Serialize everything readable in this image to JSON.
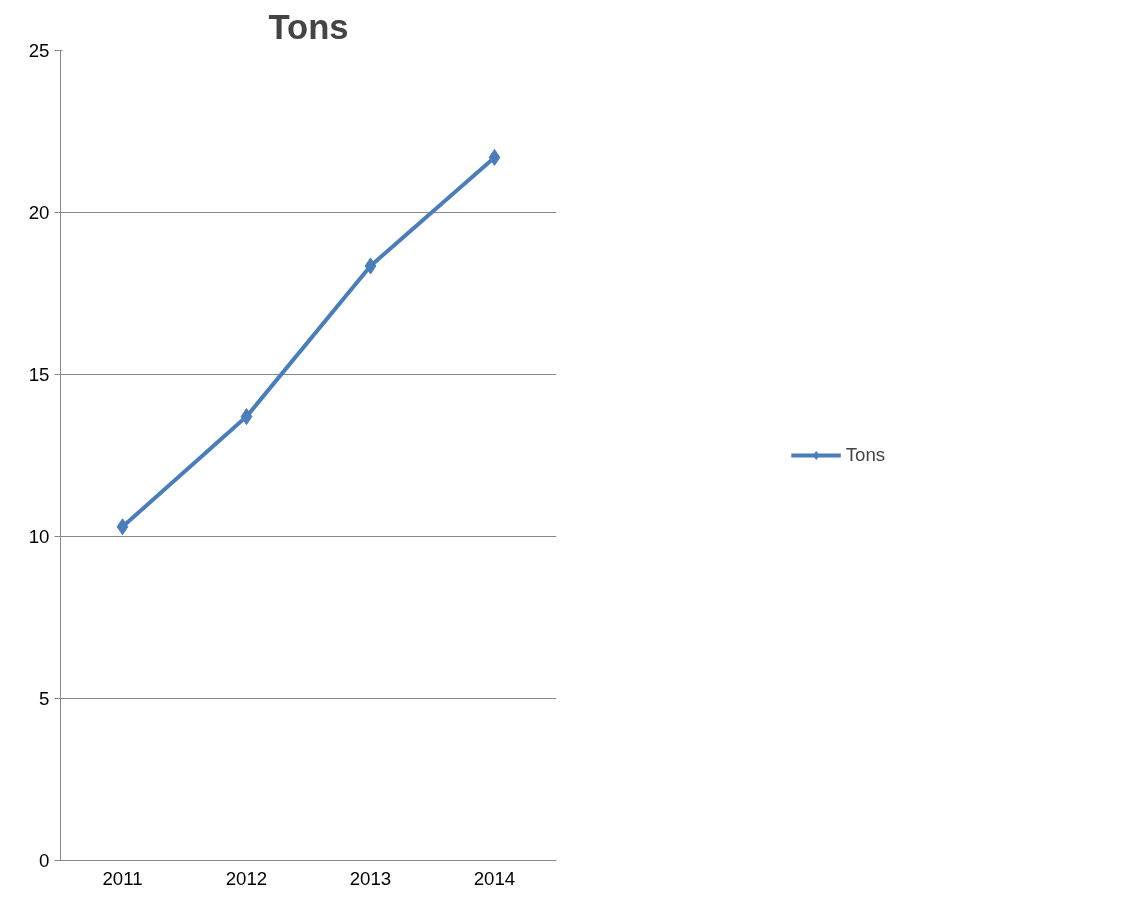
{
  "chart_data": {
    "type": "line",
    "title": "Tons",
    "categories": [
      "2011",
      "2012",
      "2013",
      "2014"
    ],
    "series": [
      {
        "name": "Tons",
        "color": "#4a7ebb",
        "values": [
          10.3,
          13.7,
          18.35,
          21.7
        ]
      }
    ],
    "ylim": [
      0,
      25
    ],
    "yticks": [
      0,
      5,
      10,
      15,
      20,
      25
    ],
    "grid": "y",
    "legend": "right",
    "marker": "diamond",
    "line_style": "solid"
  }
}
